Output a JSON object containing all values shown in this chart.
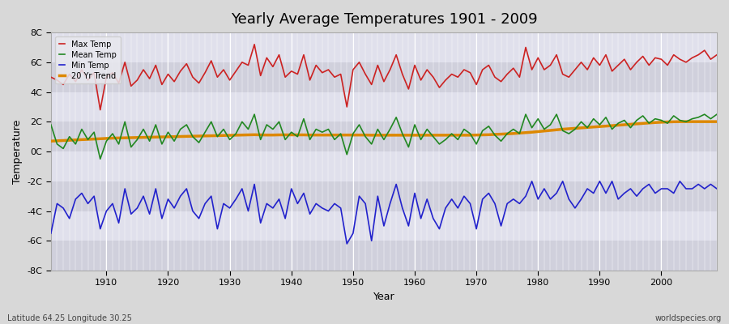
{
  "title": "Yearly Average Temperatures 1901 - 2009",
  "xlabel": "Year",
  "ylabel": "Temperature",
  "lat_lon_label": "Latitude 64.25 Longitude 30.25",
  "watermark": "worldspecies.org",
  "ylim": [
    -8,
    8
  ],
  "yticks": [
    -8,
    -6,
    -4,
    -2,
    0,
    2,
    4,
    6,
    8
  ],
  "ytick_labels": [
    "-8C",
    "-6C",
    "-4C",
    "-2C",
    "0C",
    "2C",
    "4C",
    "6C",
    "8C"
  ],
  "start_year": 1901,
  "end_year": 2009,
  "max_temp": [
    5.0,
    4.8,
    4.5,
    5.2,
    4.7,
    5.5,
    4.8,
    5.3,
    2.8,
    5.0,
    5.3,
    4.6,
    6.0,
    4.4,
    4.8,
    5.5,
    4.9,
    5.8,
    4.5,
    5.2,
    4.7,
    5.4,
    5.9,
    5.0,
    4.6,
    5.3,
    6.1,
    5.0,
    5.5,
    4.8,
    5.4,
    6.0,
    5.8,
    7.2,
    5.1,
    6.3,
    5.7,
    6.5,
    5.0,
    5.4,
    5.2,
    6.5,
    4.8,
    5.8,
    5.3,
    5.5,
    5.0,
    5.2,
    3.0,
    5.5,
    6.0,
    5.2,
    4.5,
    5.8,
    4.7,
    5.5,
    6.5,
    5.2,
    4.2,
    5.8,
    4.8,
    5.5,
    5.0,
    4.3,
    4.8,
    5.2,
    5.0,
    5.5,
    5.3,
    4.5,
    5.5,
    5.8,
    5.0,
    4.7,
    5.2,
    5.6,
    5.0,
    7.0,
    5.5,
    6.3,
    5.5,
    5.8,
    6.5,
    5.2,
    5.0,
    5.5,
    6.0,
    5.5,
    6.3,
    5.8,
    6.5,
    5.4,
    5.8,
    6.2,
    5.5,
    6.0,
    6.4,
    5.8,
    6.3,
    6.2,
    5.8,
    6.5,
    6.2,
    6.0,
    6.3,
    6.5,
    6.8,
    6.2,
    6.5
  ],
  "mean_temp": [
    1.8,
    0.5,
    0.2,
    1.0,
    0.5,
    1.5,
    0.8,
    1.3,
    -0.5,
    0.7,
    1.2,
    0.5,
    2.0,
    0.3,
    0.8,
    1.5,
    0.7,
    1.8,
    0.5,
    1.3,
    0.7,
    1.5,
    1.8,
    1.0,
    0.6,
    1.3,
    2.0,
    1.0,
    1.5,
    0.8,
    1.2,
    2.0,
    1.5,
    2.5,
    0.8,
    1.8,
    1.5,
    2.0,
    0.8,
    1.3,
    1.0,
    2.2,
    0.8,
    1.5,
    1.3,
    1.5,
    0.8,
    1.2,
    -0.2,
    1.2,
    1.8,
    1.0,
    0.5,
    1.5,
    0.8,
    1.5,
    2.3,
    1.2,
    0.3,
    1.8,
    0.8,
    1.5,
    1.0,
    0.5,
    0.8,
    1.2,
    0.8,
    1.5,
    1.2,
    0.5,
    1.4,
    1.7,
    1.1,
    0.7,
    1.2,
    1.5,
    1.2,
    2.5,
    1.6,
    2.2,
    1.5,
    1.8,
    2.5,
    1.4,
    1.2,
    1.5,
    2.0,
    1.6,
    2.2,
    1.8,
    2.3,
    1.5,
    1.9,
    2.1,
    1.6,
    2.1,
    2.4,
    1.9,
    2.2,
    2.1,
    1.9,
    2.4,
    2.1,
    2.0,
    2.2,
    2.3,
    2.5,
    2.2,
    2.5
  ],
  "min_temp": [
    -5.5,
    -3.5,
    -3.8,
    -4.5,
    -3.2,
    -2.8,
    -3.5,
    -3.0,
    -5.2,
    -4.0,
    -3.5,
    -4.8,
    -2.5,
    -4.2,
    -3.8,
    -3.0,
    -4.2,
    -2.5,
    -4.5,
    -3.2,
    -3.8,
    -3.0,
    -2.5,
    -4.0,
    -4.5,
    -3.5,
    -3.0,
    -5.2,
    -3.5,
    -3.8,
    -3.2,
    -2.5,
    -4.0,
    -2.2,
    -4.8,
    -3.5,
    -3.8,
    -3.2,
    -4.5,
    -2.5,
    -3.5,
    -2.8,
    -4.2,
    -3.5,
    -3.8,
    -4.0,
    -3.5,
    -3.8,
    -6.2,
    -5.5,
    -3.0,
    -3.5,
    -6.0,
    -3.0,
    -5.0,
    -3.5,
    -2.2,
    -3.8,
    -5.0,
    -2.8,
    -4.5,
    -3.2,
    -4.5,
    -5.2,
    -3.8,
    -3.2,
    -3.8,
    -3.0,
    -3.5,
    -5.2,
    -3.2,
    -2.8,
    -3.5,
    -5.0,
    -3.5,
    -3.2,
    -3.5,
    -3.0,
    -2.0,
    -3.2,
    -2.5,
    -3.2,
    -2.8,
    -2.0,
    -3.2,
    -3.8,
    -3.2,
    -2.5,
    -2.8,
    -2.0,
    -2.8,
    -2.0,
    -3.2,
    -2.8,
    -2.5,
    -3.0,
    -2.5,
    -2.2,
    -2.8,
    -2.5,
    -2.5,
    -2.8,
    -2.0,
    -2.5,
    -2.5,
    -2.2,
    -2.5,
    -2.2,
    -2.5
  ],
  "trend": [
    0.7,
    0.72,
    0.74,
    0.76,
    0.78,
    0.8,
    0.82,
    0.84,
    0.86,
    0.88,
    0.9,
    0.91,
    0.92,
    0.93,
    0.94,
    0.95,
    0.96,
    0.97,
    0.98,
    0.99,
    1.0,
    1.01,
    1.02,
    1.03,
    1.04,
    1.05,
    1.06,
    1.07,
    1.08,
    1.09,
    1.1,
    1.11,
    1.12,
    1.13,
    1.12,
    1.11,
    1.11,
    1.12,
    1.12,
    1.12,
    1.12,
    1.12,
    1.11,
    1.11,
    1.11,
    1.11,
    1.11,
    1.11,
    1.11,
    1.11,
    1.11,
    1.11,
    1.1,
    1.1,
    1.1,
    1.1,
    1.1,
    1.1,
    1.1,
    1.1,
    1.1,
    1.1,
    1.1,
    1.1,
    1.1,
    1.1,
    1.1,
    1.1,
    1.1,
    1.11,
    1.12,
    1.13,
    1.15,
    1.17,
    1.19,
    1.21,
    1.24,
    1.27,
    1.3,
    1.34,
    1.38,
    1.42,
    1.46,
    1.5,
    1.53,
    1.56,
    1.59,
    1.62,
    1.65,
    1.68,
    1.71,
    1.74,
    1.77,
    1.8,
    1.83,
    1.86,
    1.89,
    1.92,
    1.95,
    1.97,
    1.99,
    2.0,
    2.01,
    2.01,
    2.01,
    2.01,
    2.01,
    2.01,
    2.01
  ],
  "colors": {
    "max_temp": "#cc2222",
    "mean_temp": "#228822",
    "min_temp": "#2222cc",
    "trend": "#dd8800",
    "figure_bg": "#d8d8d8",
    "plot_bg": "#e8e8ee",
    "stripe_light": "#dcdce8",
    "stripe_dark": "#e8e8f0",
    "grid": "#ffffff"
  },
  "legend": {
    "max_temp": "Max Temp",
    "mean_temp": "Mean Temp",
    "min_temp": "Min Temp",
    "trend": "20 Yr Trend"
  },
  "title_fontsize": 13,
  "label_fontsize": 9,
  "tick_fontsize": 8,
  "line_width": 1.2
}
